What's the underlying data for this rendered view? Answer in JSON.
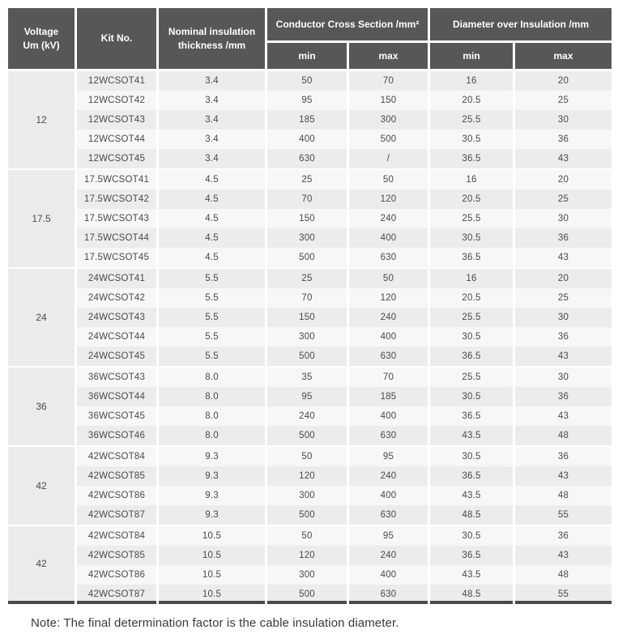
{
  "table": {
    "headers": {
      "voltage": "Voltage\nUm (kV)",
      "kit": "Kit No.",
      "thickness": "Nominal insulation\nthickness /mm",
      "conductor_cross_section": "Conductor Cross Section /mm²",
      "diameter_over_insulation": "Diameter over Insulation /mm",
      "min": "min",
      "max": "max"
    },
    "groups": [
      {
        "voltage": "12",
        "rows": [
          [
            "12WCSOT41",
            "3.4",
            "50",
            "70",
            "16",
            "20"
          ],
          [
            "12WCSOT42",
            "3.4",
            "95",
            "150",
            "20.5",
            "25"
          ],
          [
            "12WCSOT43",
            "3.4",
            "185",
            "300",
            "25.5",
            "30"
          ],
          [
            "12WCSOT44",
            "3.4",
            "400",
            "500",
            "30.5",
            "36"
          ],
          [
            "12WCSOT45",
            "3.4",
            "630",
            "/",
            "36.5",
            "43"
          ]
        ]
      },
      {
        "voltage": "17.5",
        "rows": [
          [
            "17.5WCSOT41",
            "4.5",
            "25",
            "50",
            "16",
            "20"
          ],
          [
            "17.5WCSOT42",
            "4.5",
            "70",
            "120",
            "20.5",
            "25"
          ],
          [
            "17.5WCSOT43",
            "4.5",
            "150",
            "240",
            "25.5",
            "30"
          ],
          [
            "17.5WCSOT44",
            "4.5",
            "300",
            "400",
            "30.5",
            "36"
          ],
          [
            "17.5WCSOT45",
            "4.5",
            "500",
            "630",
            "36.5",
            "43"
          ]
        ]
      },
      {
        "voltage": "24",
        "rows": [
          [
            "24WCSOT41",
            "5.5",
            "25",
            "50",
            "16",
            "20"
          ],
          [
            "24WCSOT42",
            "5.5",
            "70",
            "120",
            "20.5",
            "25"
          ],
          [
            "24WCSOT43",
            "5.5",
            "150",
            "240",
            "25.5",
            "30"
          ],
          [
            "24WCSOT44",
            "5.5",
            "300",
            "400",
            "30.5",
            "36"
          ],
          [
            "24WCSOT45",
            "5.5",
            "500",
            "630",
            "36.5",
            "43"
          ]
        ]
      },
      {
        "voltage": "36",
        "rows": [
          [
            "36WCSOT43",
            "8.0",
            "35",
            "70",
            "25.5",
            "30"
          ],
          [
            "36WCSOT44",
            "8.0",
            "95",
            "185",
            "30.5",
            "36"
          ],
          [
            "36WCSOT45",
            "8.0",
            "240",
            "400",
            "36.5",
            "43"
          ],
          [
            "36WCSOT46",
            "8.0",
            "500",
            "630",
            "43.5",
            "48"
          ]
        ]
      },
      {
        "voltage": "42",
        "rows": [
          [
            "42WCSOT84",
            "9.3",
            "50",
            "95",
            "30.5",
            "36"
          ],
          [
            "42WCSOT85",
            "9.3",
            "120",
            "240",
            "36.5",
            "43"
          ],
          [
            "42WCSOT86",
            "9.3",
            "300",
            "400",
            "43.5",
            "48"
          ],
          [
            "42WCSOT87",
            "9.3",
            "500",
            "630",
            "48.5",
            "55"
          ]
        ]
      },
      {
        "voltage": "42",
        "rows": [
          [
            "42WCSOT84",
            "10.5",
            "50",
            "95",
            "30.5",
            "36"
          ],
          [
            "42WCSOT85",
            "10.5",
            "120",
            "240",
            "36.5",
            "43"
          ],
          [
            "42WCSOT86",
            "10.5",
            "300",
            "400",
            "43.5",
            "48"
          ],
          [
            "42WCSOT87",
            "10.5",
            "500",
            "630",
            "48.5",
            "55"
          ]
        ]
      }
    ]
  },
  "note": "Note: The final determination factor is the cable insulation diameter.",
  "colors": {
    "header_bg": "#59565a",
    "header_text": "#ffffff",
    "row_dark": "#ececed",
    "row_light": "#f7f7f8",
    "voltage_cell_bg": "#ebebec",
    "body_text": "#4a4a4c",
    "bottom_border": "#4b494c"
  }
}
